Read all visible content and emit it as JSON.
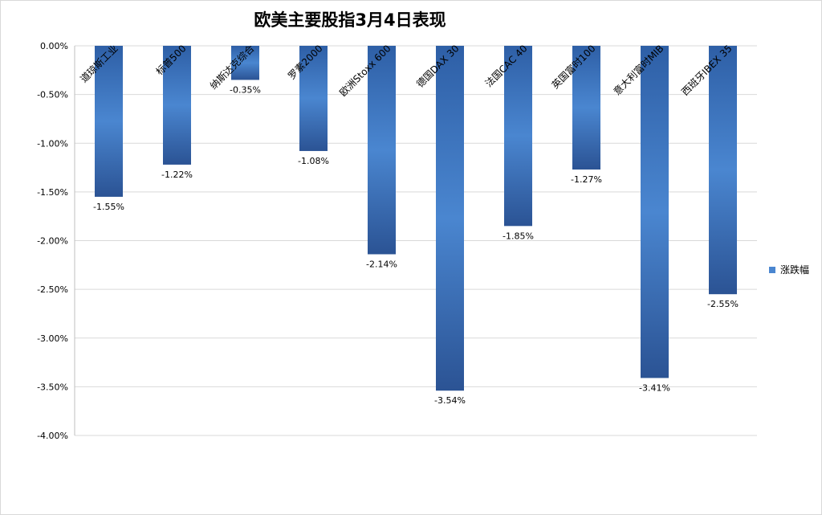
{
  "chart_data": {
    "type": "bar",
    "title": "欧美主要股指3月4日表现",
    "categories": [
      "道琼斯工业",
      "标普500",
      "纳斯达克综合",
      "罗素2000",
      "欧洲Stoxx 600",
      "德国DAX 30",
      "法国CAC 40",
      "英国富时100",
      "意大利富时MIB",
      "西班牙IBEX 35"
    ],
    "series": [
      {
        "name": "涨跌幅",
        "values": [
          -1.55,
          -1.22,
          -0.35,
          -1.08,
          -2.14,
          -3.54,
          -1.85,
          -1.27,
          -3.41,
          -2.55
        ],
        "labels": [
          "-1.55%",
          "-1.22%",
          "-0.35%",
          "-1.08%",
          "-2.14%",
          "-3.54%",
          "-1.85%",
          "-1.27%",
          "-3.41%",
          "-2.55%"
        ]
      }
    ],
    "y_ticks": [
      "0.00%",
      "-0.50%",
      "-1.00%",
      "-1.50%",
      "-2.00%",
      "-2.50%",
      "-3.00%",
      "-3.50%",
      "-4.00%"
    ],
    "y_tick_values": [
      0,
      -0.5,
      -1.0,
      -1.5,
      -2.0,
      -2.5,
      -3.0,
      -3.5,
      -4.0
    ],
    "ylim": [
      -4.0,
      0.0
    ],
    "grid": true,
    "legend_position": "right",
    "bar_color_top": "#2e5fa6",
    "bar_color_mid": "#4a86d0",
    "bar_color_bottom": "#2b5394"
  }
}
